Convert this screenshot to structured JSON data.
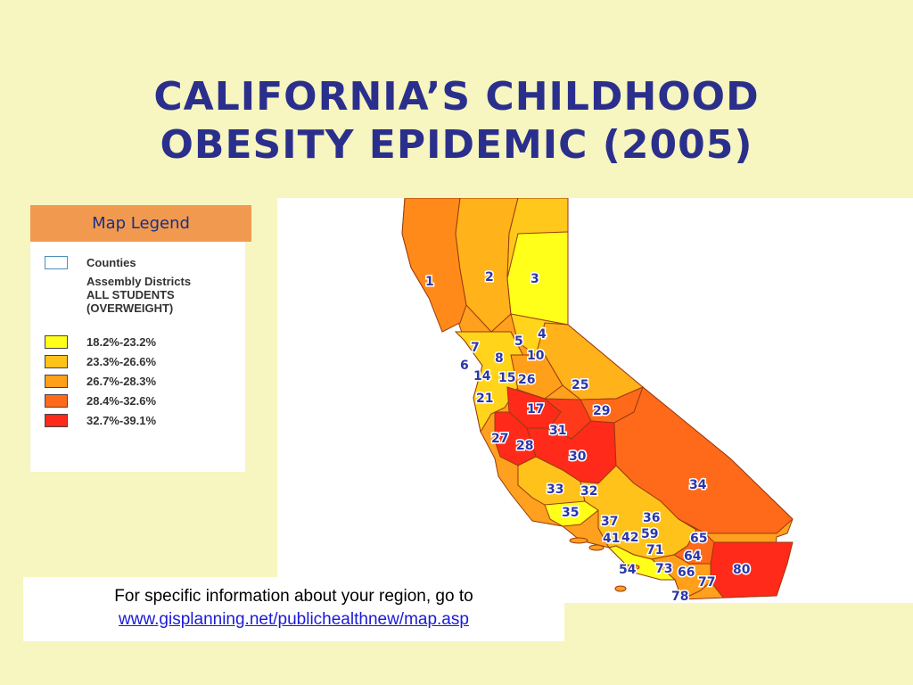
{
  "title": {
    "line1": "California’s Childhood",
    "line2": "Obesity Epidemic (2005)"
  },
  "legend": {
    "header": "Map Legend",
    "counties_label": "Counties",
    "districts_lines": [
      "Assembly Districts",
      "ALL STUDENTS",
      "(OVERWEIGHT)"
    ],
    "ranges": [
      {
        "label": "18.2%-23.2%",
        "color": "#ffff1a"
      },
      {
        "label": "23.3%-26.6%",
        "color": "#ffc21a"
      },
      {
        "label": "26.7%-28.3%",
        "color": "#ff9f1a"
      },
      {
        "label": "28.4%-32.6%",
        "color": "#ff6a1a"
      },
      {
        "label": "32.7%-39.1%",
        "color": "#ff2a1a"
      }
    ]
  },
  "map": {
    "district_labels": [
      "1",
      "2",
      "3",
      "4",
      "5",
      "6",
      "7",
      "8",
      "10",
      "14",
      "15",
      "17",
      "21",
      "25",
      "26",
      "27",
      "28",
      "29",
      "30",
      "31",
      "32",
      "33",
      "34",
      "35",
      "36",
      "37",
      "41",
      "42",
      "54",
      "59",
      "64",
      "65",
      "66",
      "71",
      "73",
      "77",
      "78",
      "80"
    ]
  },
  "info": {
    "text": "For specific information about your region, go to",
    "link": "www.gisplanning.net/publichealthnew/map.asp"
  }
}
